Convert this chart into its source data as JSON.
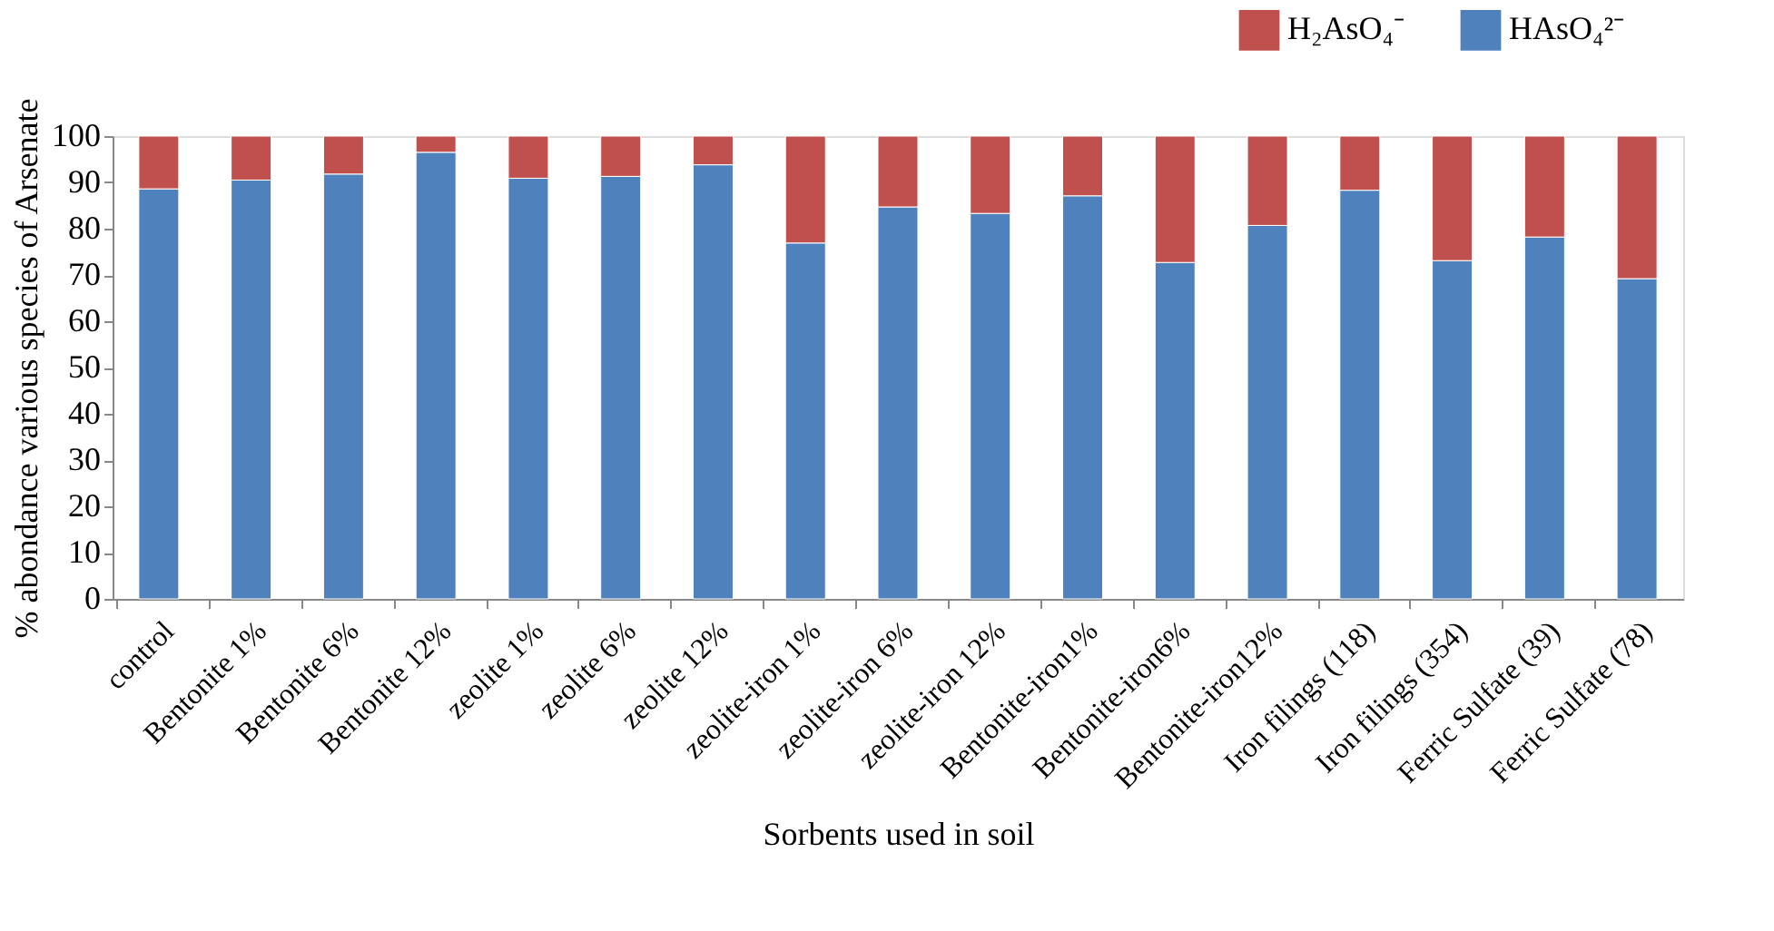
{
  "chart_data": {
    "type": "bar",
    "stacked": true,
    "xlabel": "Sorbents used in soil",
    "ylabel": "% abondance various  species of Arsenate",
    "categories": [
      "control",
      "Bentonite 1%",
      "Bentonite 6%",
      "Bentonite 12%",
      "zeolite 1%",
      "zeolite 6%",
      "zeolite 12%",
      "zeolite-iron 1%",
      "zeolite-iron 6%",
      "zeolite-iron 12%",
      "Bentonite-iron1%",
      "Bentonite-iron6%",
      "Bentonite-iron12%",
      "Iron filings (118)",
      "Iron filings (354)",
      "Ferric Sulfate (39)",
      "Ferric Sulfate (78)"
    ],
    "series": [
      {
        "name": "HAsO₄²⁻",
        "color": "#4f81bd",
        "values": [
          88.6,
          90.5,
          91.8,
          96.5,
          90.9,
          91.3,
          93.8,
          76.9,
          84.7,
          83.3,
          87.1,
          72.7,
          80.7,
          88.3,
          73.1,
          78.2,
          69.2
        ]
      },
      {
        "name": "H₂AsO₄⁻",
        "color": "#c0504d",
        "values": [
          11.4,
          9.5,
          8.2,
          3.5,
          9.1,
          8.7,
          6.2,
          23.1,
          15.3,
          16.7,
          12.9,
          27.3,
          19.3,
          11.7,
          26.9,
          21.8,
          30.8
        ]
      }
    ],
    "ylim": [
      0,
      100
    ],
    "yticks": [
      0,
      10,
      20,
      30,
      40,
      50,
      60,
      70,
      80,
      90,
      100
    ],
    "grid": false,
    "legend": "top right"
  }
}
